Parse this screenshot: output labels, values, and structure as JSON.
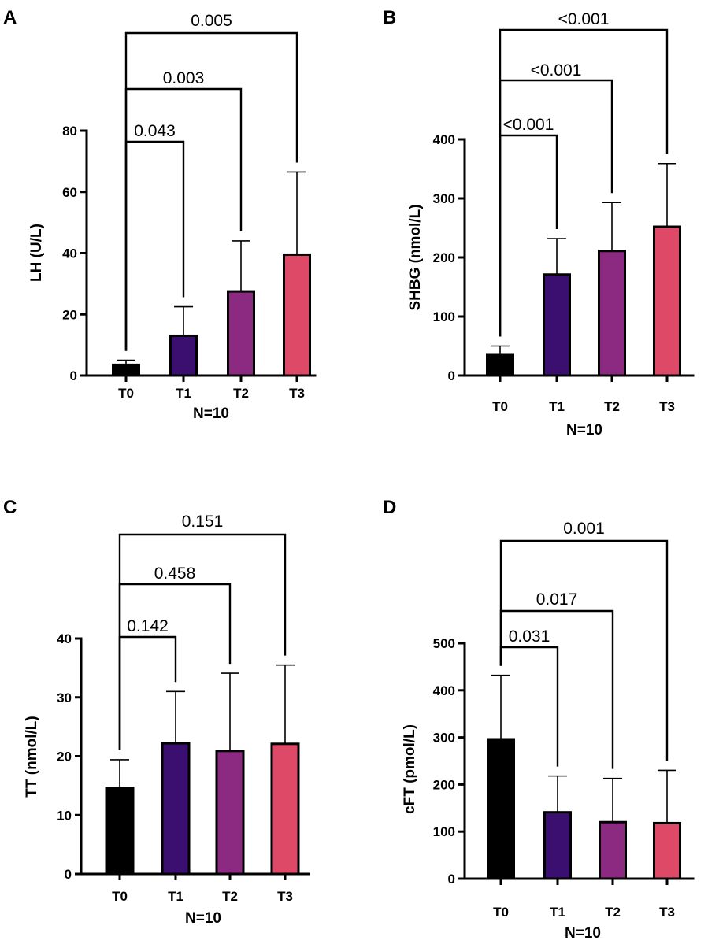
{
  "chart_data": [
    {
      "type": "bar",
      "panel": "A",
      "categories": [
        "T0",
        "T1",
        "T2",
        "T3"
      ],
      "values": [
        3.5,
        13,
        27.5,
        39.5
      ],
      "errors": [
        1.5,
        9.5,
        16.5,
        27
      ],
      "ylabel": "LH (U/L)",
      "xlabel": "N=10",
      "ylim": [
        0,
        80
      ],
      "yticks": [
        0,
        20,
        40,
        60,
        80
      ],
      "ytick_labels": [
        "0",
        "20",
        "40",
        "60",
        "80"
      ],
      "comparisons": [
        {
          "from": "T0",
          "to": "T1",
          "p": "0.043"
        },
        {
          "from": "T0",
          "to": "T2",
          "p": "0.003"
        },
        {
          "from": "T0",
          "to": "T3",
          "p": "0.005"
        }
      ]
    },
    {
      "type": "bar",
      "panel": "B",
      "categories": [
        "T0",
        "T1",
        "T2",
        "T3"
      ],
      "values": [
        36,
        171,
        211,
        252
      ],
      "errors": [
        14,
        61,
        82,
        107
      ],
      "ylabel": "SHBG (nmol/L)",
      "xlabel": "N=10",
      "ylim": [
        0,
        400
      ],
      "yticks": [
        0,
        100,
        200,
        300,
        400
      ],
      "ytick_labels": [
        "0",
        "100",
        "200",
        "300",
        "400"
      ],
      "comparisons": [
        {
          "from": "T0",
          "to": "T1",
          "p": "<0.001"
        },
        {
          "from": "T0",
          "to": "T2",
          "p": "<0.001"
        },
        {
          "from": "T0",
          "to": "T3",
          "p": "<0.001"
        }
      ]
    },
    {
      "type": "bar",
      "panel": "C",
      "categories": [
        "T0",
        "T1",
        "T2",
        "T3"
      ],
      "values": [
        14.6,
        22.2,
        20.9,
        22.1
      ],
      "errors": [
        4.8,
        8.8,
        13.2,
        13.4
      ],
      "ylabel": "TT (nmol/L)",
      "xlabel": "N=10",
      "ylim": [
        0,
        40
      ],
      "yticks": [
        0,
        10,
        20,
        30,
        40
      ],
      "ytick_labels": [
        "0",
        "10",
        "20",
        "30",
        "40"
      ],
      "comparisons": [
        {
          "from": "T0",
          "to": "T1",
          "p": "0.142"
        },
        {
          "from": "T0",
          "to": "T2",
          "p": "0.458"
        },
        {
          "from": "T0",
          "to": "T3",
          "p": "0.151"
        }
      ]
    },
    {
      "type": "bar",
      "panel": "D",
      "categories": [
        "T0",
        "T1",
        "T2",
        "T3"
      ],
      "values": [
        296,
        141,
        120,
        118
      ],
      "errors": [
        136,
        77,
        93,
        112
      ],
      "ylabel": "cFT (pmol/L)",
      "xlabel": "N=10",
      "ylim": [
        0,
        500
      ],
      "yticks": [
        0,
        100,
        200,
        300,
        400,
        500
      ],
      "ytick_labels": [
        "0",
        "100",
        "200",
        "300",
        "400",
        "500"
      ],
      "comparisons": [
        {
          "from": "T0",
          "to": "T1",
          "p": "0.031"
        },
        {
          "from": "T0",
          "to": "T2",
          "p": "0.017"
        },
        {
          "from": "T0",
          "to": "T3",
          "p": "0.001"
        }
      ]
    }
  ],
  "colors": {
    "T0": "#000000",
    "T1": "#3b0f70",
    "T2": "#8c2981",
    "T3": "#de4968"
  }
}
